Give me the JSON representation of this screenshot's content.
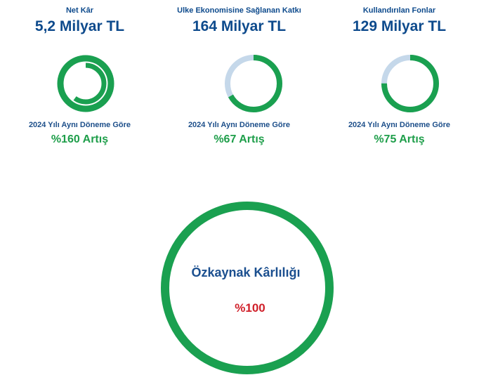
{
  "kpis": [
    {
      "label": "Net Kâr",
      "value": "5,2 Milyar TL",
      "period": "2024 Yılı Aynı Döneme Göre",
      "change": "%160 Artış"
    },
    {
      "label": "Ulke Ekonomisine Sağlanan  Katkı",
      "value": "164 Milyar TL",
      "period": "2024 Yılı Aynı Döneme Göre",
      "change": "%67 Artış"
    },
    {
      "label": "Kullandırılan  Fonlar",
      "value": "129 Milyar TL",
      "period": "2024 Yılı Aynı Döneme Göre",
      "change": "%75 Artış"
    }
  ],
  "roe": {
    "title": "Özkaynak Kârlılığı",
    "value": "%100"
  },
  "colors": {
    "accent_green": "#1aa050",
    "track_light_blue": "#c5d8ea",
    "heading_blue": "#0d4a8c",
    "alert_red": "#d0202a"
  },
  "ring_levels": [
    1.6,
    0.67,
    0.75
  ],
  "roe_level": 1.0
}
